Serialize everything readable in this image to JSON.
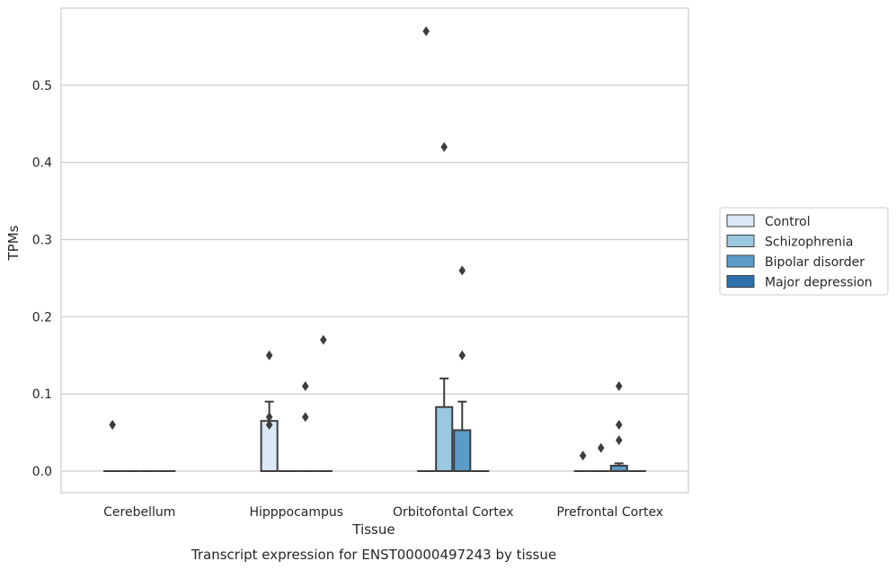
{
  "chart_data": {
    "type": "box",
    "caption": "Transcript expression for ENST00000497243 by tissue",
    "xlabel": "Tissue",
    "ylabel": "TPMs",
    "ylim": [
      -0.028,
      0.6
    ],
    "yticks": [
      0.0,
      0.1,
      0.2,
      0.3,
      0.4,
      0.5
    ],
    "ytick_labels": [
      "0.0",
      "0.1",
      "0.2",
      "0.3",
      "0.4",
      "0.5"
    ],
    "grid": true,
    "legend_position": "right",
    "categories": [
      "Cerebellum",
      "Hipppocampus",
      "Orbitofontal Cortex",
      "Prefrontal Cortex"
    ],
    "series": [
      {
        "name": "Control",
        "color": "#dbe9f6",
        "boxes": [
          {
            "q1": 0,
            "median": 0,
            "q3": 0,
            "whisker_low": 0,
            "whisker_high": 0,
            "outliers": [
              0.06
            ]
          },
          {
            "q1": 0,
            "median": 0,
            "q3": 0.065,
            "whisker_low": 0,
            "whisker_high": 0.09,
            "outliers": [
              0.15,
              0.07,
              0.06
            ]
          },
          {
            "q1": 0,
            "median": 0,
            "q3": 0,
            "whisker_low": 0,
            "whisker_high": 0,
            "outliers": [
              0.57
            ]
          },
          {
            "q1": 0,
            "median": 0,
            "q3": 0,
            "whisker_low": 0,
            "whisker_high": 0,
            "outliers": [
              0.02
            ]
          }
        ]
      },
      {
        "name": "Schizophrenia",
        "color": "#9ac8e0",
        "boxes": [
          {
            "q1": 0,
            "median": 0,
            "q3": 0,
            "whisker_low": 0,
            "whisker_high": 0,
            "outliers": []
          },
          {
            "q1": 0,
            "median": 0,
            "q3": 0,
            "whisker_low": 0,
            "whisker_high": 0,
            "outliers": []
          },
          {
            "q1": 0,
            "median": 0,
            "q3": 0.083,
            "whisker_low": 0,
            "whisker_high": 0.12,
            "outliers": [
              0.42
            ]
          },
          {
            "q1": 0,
            "median": 0,
            "q3": 0,
            "whisker_low": 0,
            "whisker_high": 0,
            "outliers": [
              0.03
            ]
          }
        ]
      },
      {
        "name": "Bipolar disorder",
        "color": "#5a9bc8",
        "boxes": [
          {
            "q1": 0,
            "median": 0,
            "q3": 0,
            "whisker_low": 0,
            "whisker_high": 0,
            "outliers": []
          },
          {
            "q1": 0,
            "median": 0,
            "q3": 0,
            "whisker_low": 0,
            "whisker_high": 0,
            "outliers": [
              0.11,
              0.07
            ]
          },
          {
            "q1": 0,
            "median": 0,
            "q3": 0.053,
            "whisker_low": 0,
            "whisker_high": 0.09,
            "outliers": [
              0.26,
              0.15
            ]
          },
          {
            "q1": 0,
            "median": 0,
            "q3": 0.007,
            "whisker_low": 0,
            "whisker_high": 0.01,
            "outliers": [
              0.11,
              0.06,
              0.04
            ]
          }
        ]
      },
      {
        "name": "Major depression",
        "color": "#2e6fae",
        "boxes": [
          {
            "q1": 0,
            "median": 0,
            "q3": 0,
            "whisker_low": 0,
            "whisker_high": 0,
            "outliers": []
          },
          {
            "q1": 0,
            "median": 0,
            "q3": 0,
            "whisker_low": 0,
            "whisker_high": 0,
            "outliers": [
              0.17
            ]
          },
          {
            "q1": 0,
            "median": 0,
            "q3": 0,
            "whisker_low": 0,
            "whisker_high": 0,
            "outliers": []
          },
          {
            "q1": 0,
            "median": 0,
            "q3": 0,
            "whisker_low": 0,
            "whisker_high": 0,
            "outliers": []
          }
        ]
      }
    ]
  }
}
